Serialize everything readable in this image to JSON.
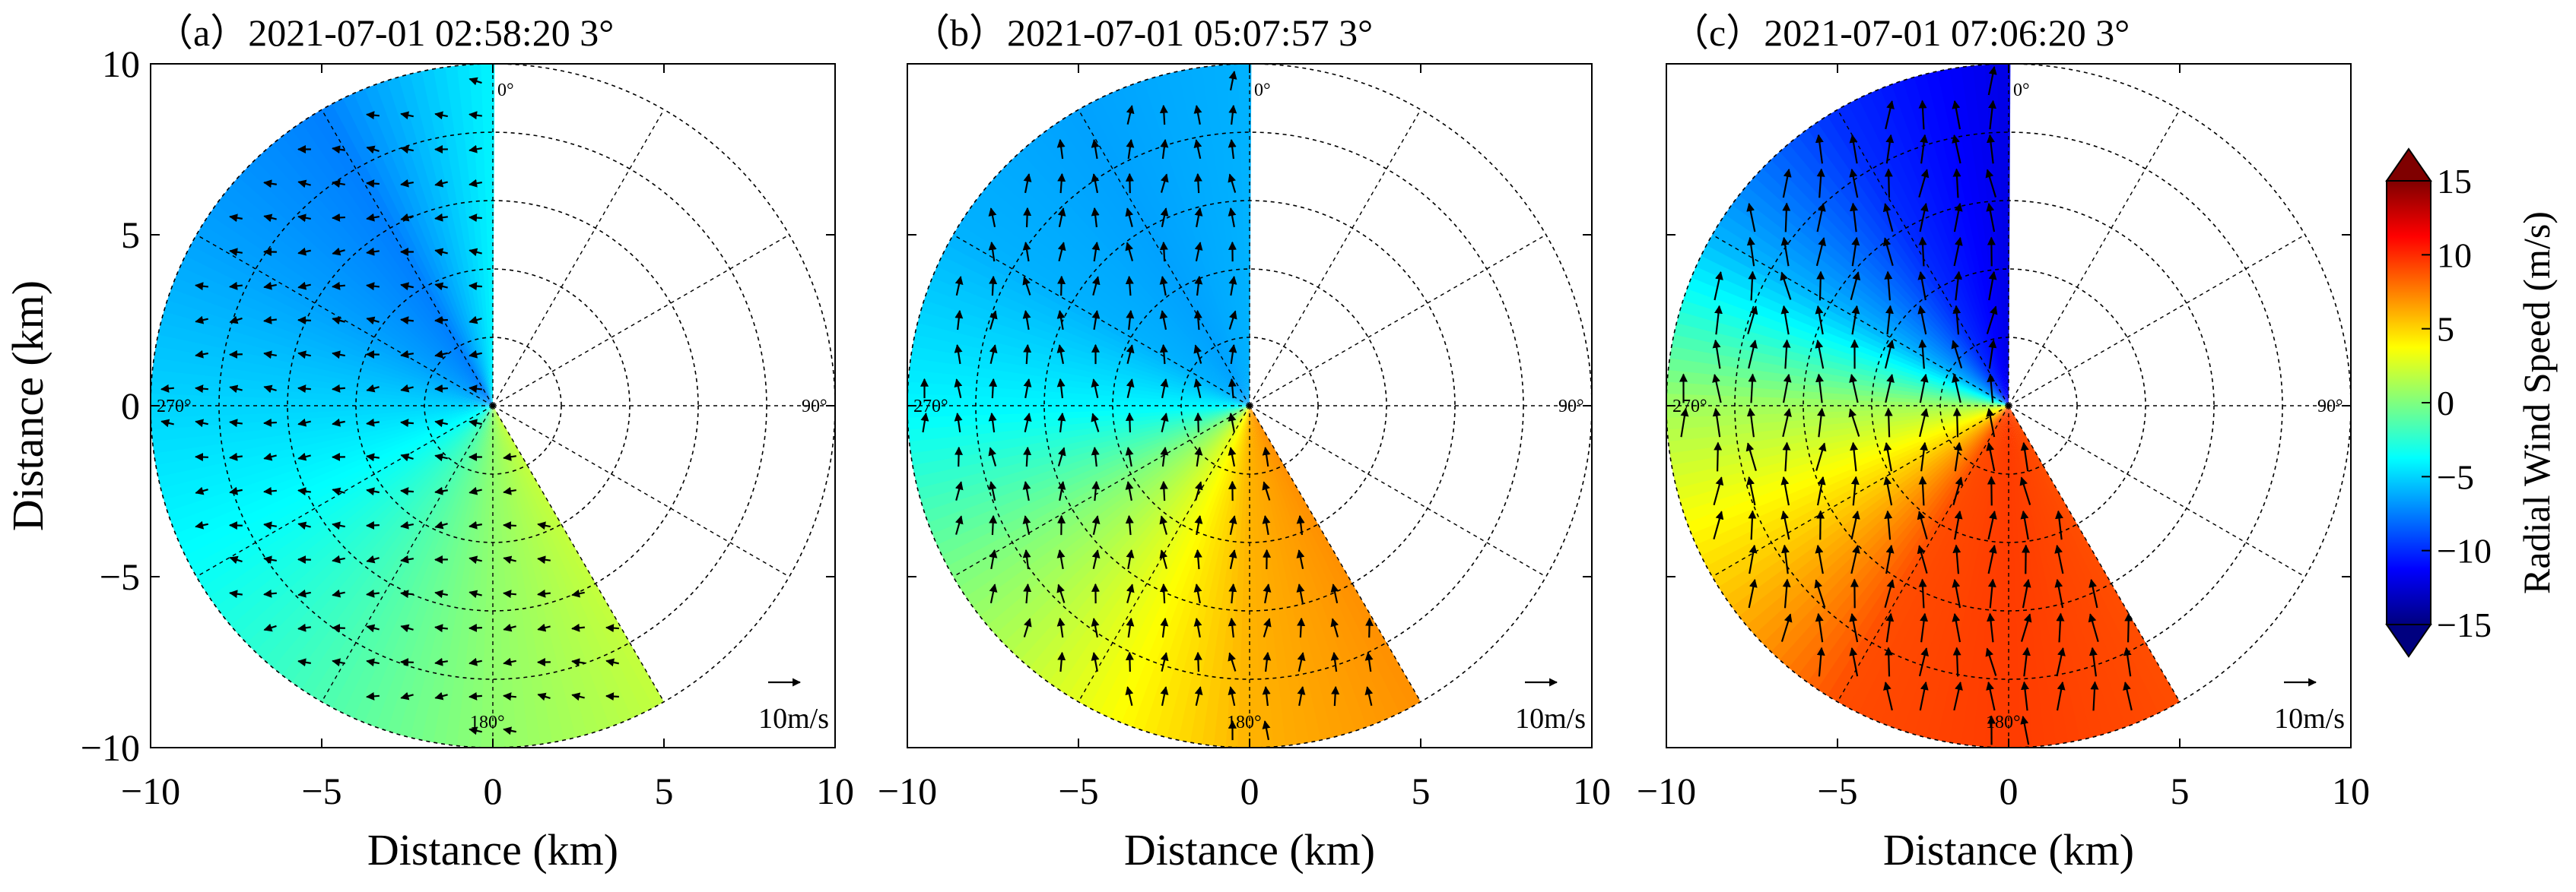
{
  "chart_data": [
    {
      "type": "heatmap",
      "subtype": "polar radial wind field (PPI scan) with wind vectors",
      "title": "（a）2021-07-01 02:58:20 3°",
      "xlabel": "Distance (km)",
      "ylabel": "Distance (km)",
      "xlim": [
        -10,
        10
      ],
      "ylim": [
        -10,
        10
      ],
      "xticks": [
        "−10",
        "−5",
        "0",
        "5",
        "10"
      ],
      "yticks": [
        "−10",
        "−5",
        "0",
        "5",
        "10"
      ],
      "azimuth_labels": [
        "0°",
        "90°",
        "180°",
        "270°"
      ],
      "range_rings_km": [
        2,
        4,
        6,
        8,
        10
      ],
      "spoke_interval_deg": 30,
      "scan_sector_deg": [
        150,
        360
      ],
      "radial_speed_by_azimuth": [
        {
          "azimuth_deg": 150,
          "speed_ms": 2.0
        },
        {
          "azimuth_deg": 180,
          "speed_ms": 0.5
        },
        {
          "azimuth_deg": 210,
          "speed_ms": -1.5
        },
        {
          "azimuth_deg": 240,
          "speed_ms": -3.5
        },
        {
          "azimuth_deg": 270,
          "speed_ms": -5.0
        },
        {
          "azimuth_deg": 300,
          "speed_ms": -6.5
        },
        {
          "azimuth_deg": 330,
          "speed_ms": -7.5
        },
        {
          "azimuth_deg": 360,
          "speed_ms": -4.0
        }
      ],
      "wind_vectors": {
        "dominant_direction": "westward",
        "mean_speed_ms": 4
      },
      "reference_vector_label": "10m/s"
    },
    {
      "type": "heatmap",
      "subtype": "polar radial wind field (PPI scan) with wind vectors",
      "title": "（b）2021-07-01 05:07:57 3°",
      "xlabel": "Distance (km)",
      "ylabel": "",
      "xlim": [
        -10,
        10
      ],
      "ylim": [
        -10,
        10
      ],
      "xticks": [
        "−10",
        "−5",
        "0",
        "5",
        "10"
      ],
      "azimuth_labels": [
        "0°",
        "90°",
        "180°",
        "270°"
      ],
      "range_rings_km": [
        2,
        4,
        6,
        8,
        10
      ],
      "spoke_interval_deg": 30,
      "scan_sector_deg": [
        150,
        360
      ],
      "radial_speed_by_azimuth": [
        {
          "azimuth_deg": 150,
          "speed_ms": 7.0
        },
        {
          "azimuth_deg": 180,
          "speed_ms": 6.0
        },
        {
          "azimuth_deg": 210,
          "speed_ms": 3.0
        },
        {
          "azimuth_deg": 240,
          "speed_ms": 0.0
        },
        {
          "azimuth_deg": 270,
          "speed_ms": -4.0
        },
        {
          "azimuth_deg": 300,
          "speed_ms": -6.0
        },
        {
          "azimuth_deg": 330,
          "speed_ms": -6.5
        },
        {
          "azimuth_deg": 360,
          "speed_ms": -6.0
        }
      ],
      "wind_vectors": {
        "dominant_direction": "northward",
        "mean_speed_ms": 6
      },
      "reference_vector_label": "10m/s"
    },
    {
      "type": "heatmap",
      "subtype": "polar radial wind field (PPI scan) with wind vectors",
      "title": "（c）2021-07-01 07:06:20 3°",
      "xlabel": "Distance (km)",
      "ylabel": "",
      "xlim": [
        -10,
        10
      ],
      "ylim": [
        -10,
        10
      ],
      "xticks": [
        "−10",
        "−5",
        "0",
        "5",
        "10"
      ],
      "azimuth_labels": [
        "0°",
        "90°",
        "180°",
        "270°"
      ],
      "range_rings_km": [
        2,
        4,
        6,
        8,
        10
      ],
      "spoke_interval_deg": 30,
      "scan_sector_deg": [
        150,
        360
      ],
      "radial_speed_by_azimuth": [
        {
          "azimuth_deg": 150,
          "speed_ms": 9.0
        },
        {
          "azimuth_deg": 180,
          "speed_ms": 9.5
        },
        {
          "azimuth_deg": 210,
          "speed_ms": 9.0
        },
        {
          "azimuth_deg": 240,
          "speed_ms": 5.0
        },
        {
          "azimuth_deg": 270,
          "speed_ms": 1.0
        },
        {
          "azimuth_deg": 300,
          "speed_ms": -6.0
        },
        {
          "azimuth_deg": 330,
          "speed_ms": -10.0
        },
        {
          "azimuth_deg": 360,
          "speed_ms": -12.0
        }
      ],
      "wind_vectors": {
        "dominant_direction": "northward",
        "mean_speed_ms": 9
      },
      "reference_vector_label": "10m/s"
    }
  ],
  "colorbar": {
    "label": "Radial Wind Speed (m/s)",
    "min": -15,
    "max": 15,
    "ticks": [
      "15",
      "10",
      "5",
      "0",
      "−5",
      "−10",
      "−15"
    ],
    "tick_values": [
      15,
      10,
      5,
      0,
      -5,
      -10,
      -15
    ],
    "extend": "both",
    "colormap": "jet",
    "colors": [
      "#00007f",
      "#0000ff",
      "#007fff",
      "#00ffff",
      "#7fff7f",
      "#ffff00",
      "#ff7f00",
      "#ff0000",
      "#7f0000"
    ]
  }
}
